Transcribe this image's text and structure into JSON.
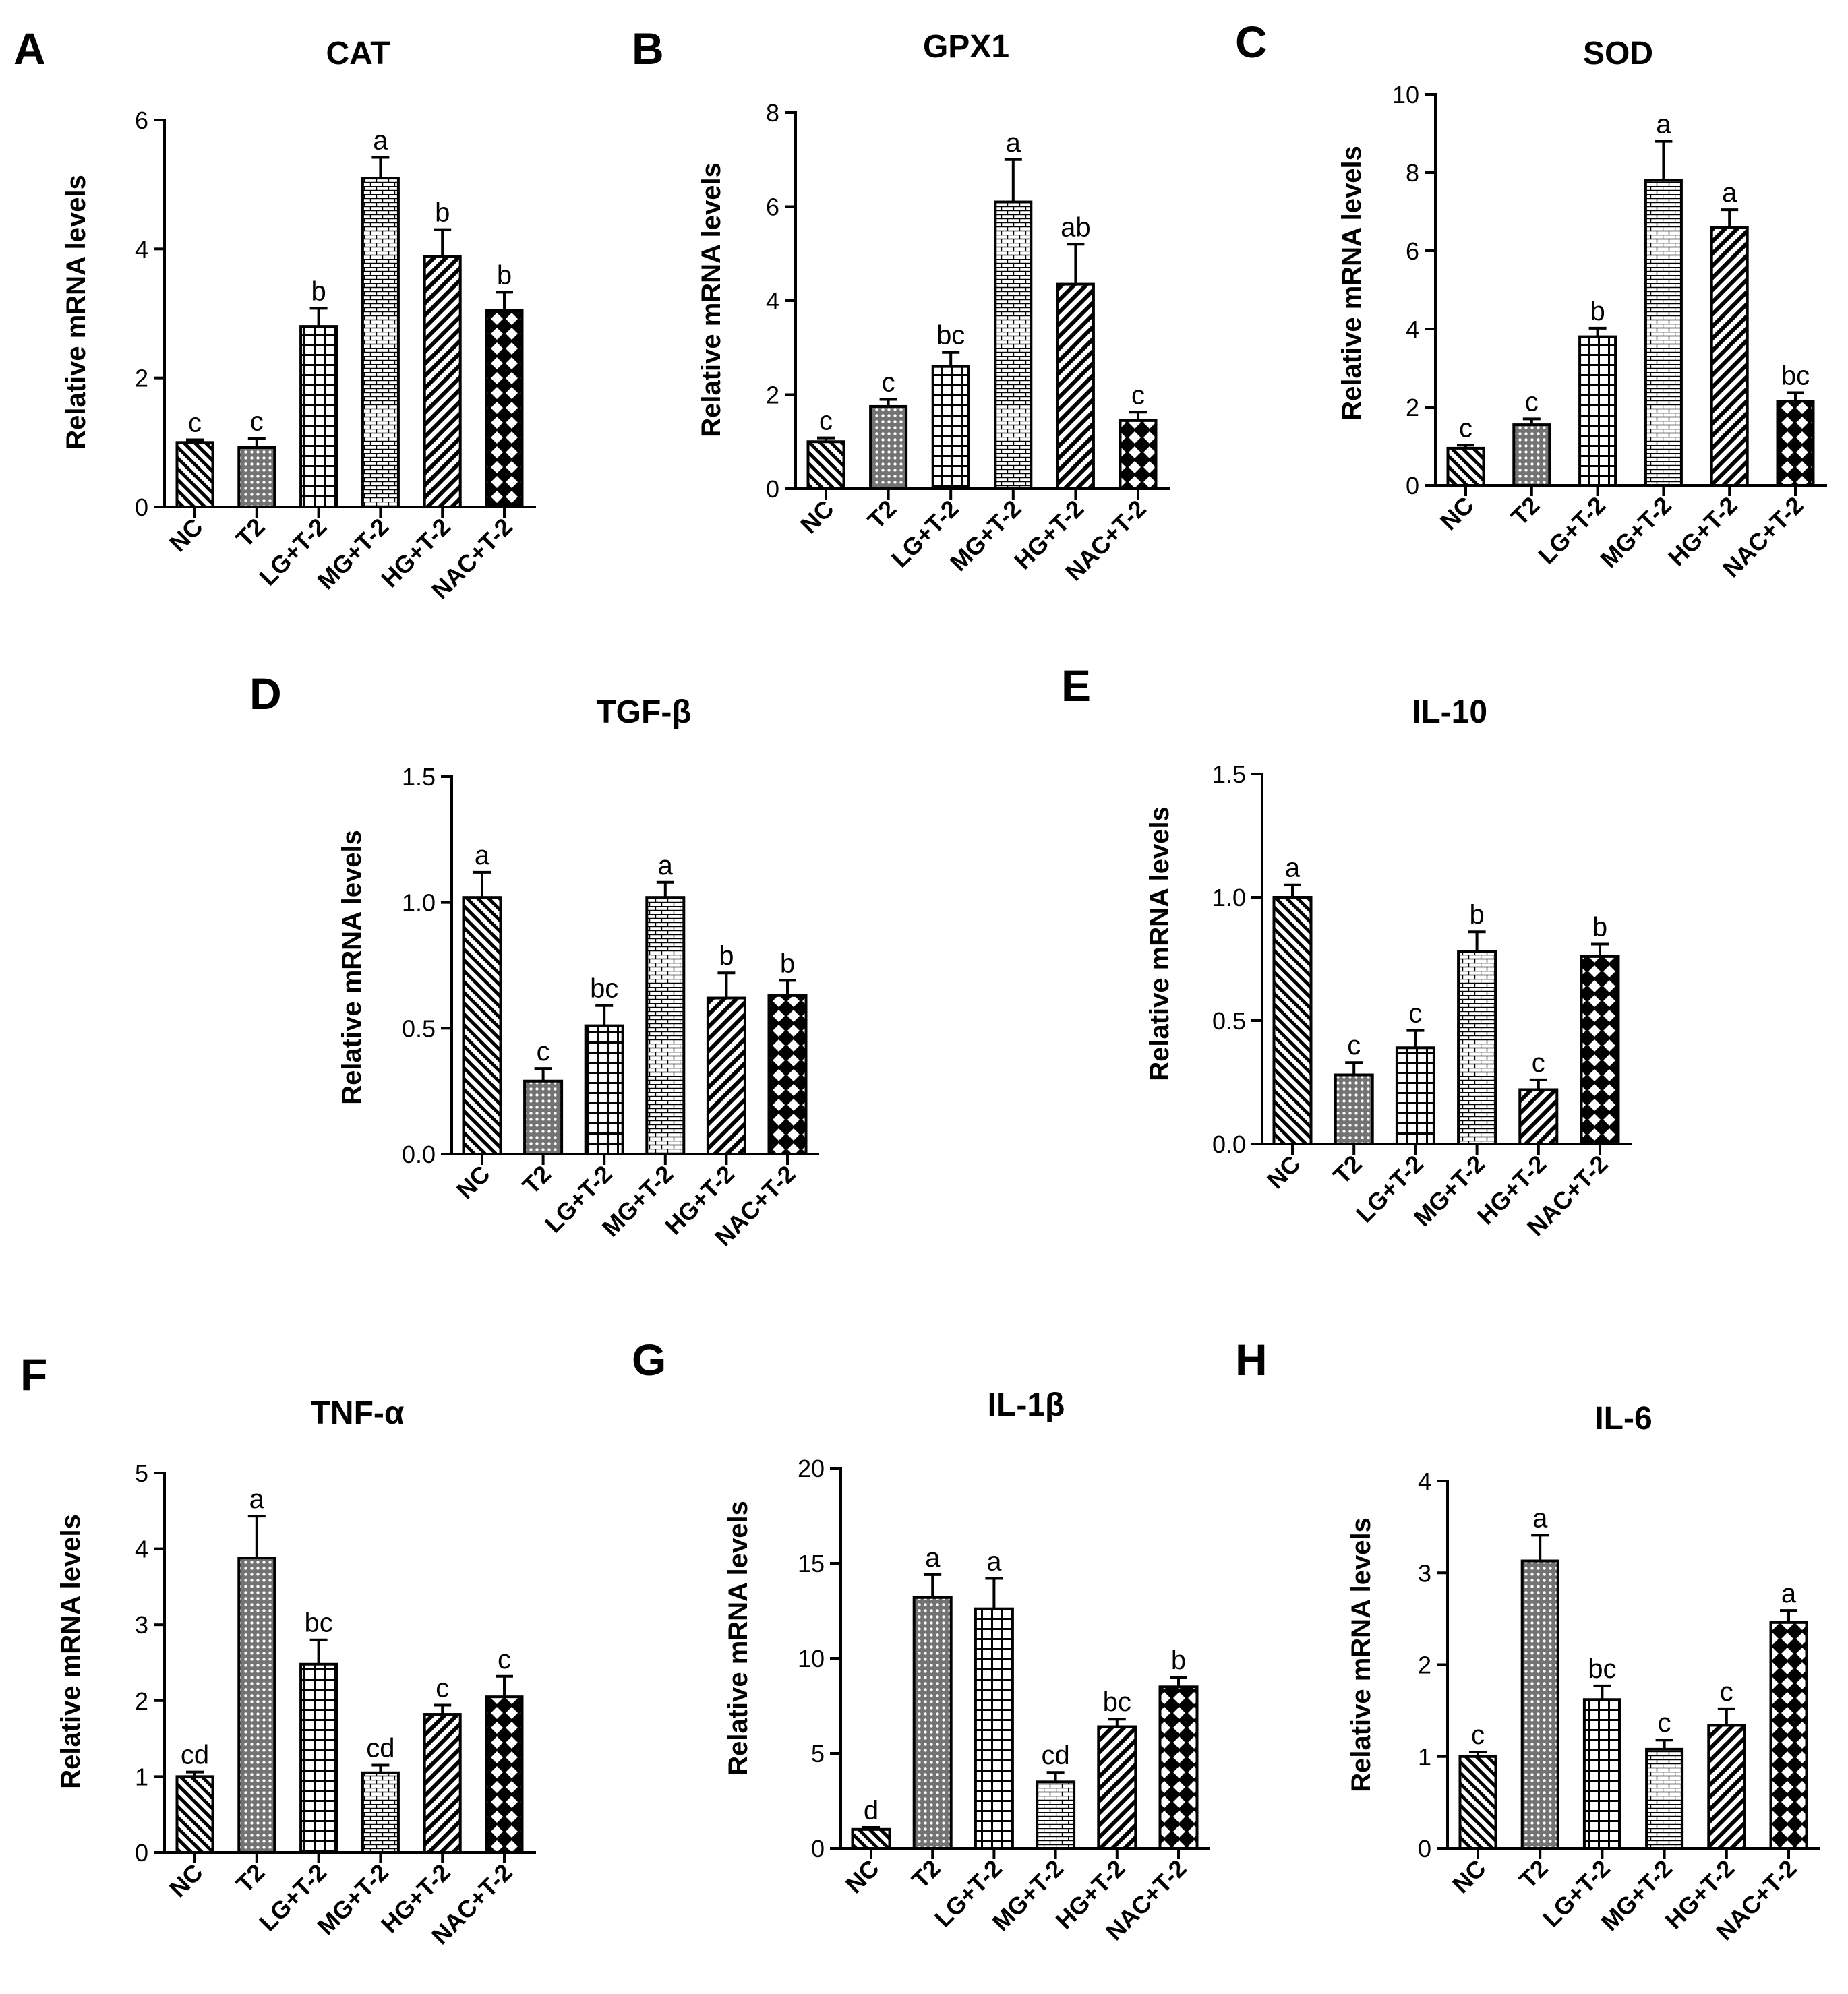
{
  "chart_data": [
    {
      "panel": "A",
      "type": "bar",
      "title": "CAT",
      "ylabel": "Relative mRNA levels",
      "categories": [
        "NC",
        "T2",
        "LG+T-2",
        "MG+T-2",
        "HG+T-2",
        "NAC+T-2"
      ],
      "values": [
        1.0,
        0.92,
        2.8,
        5.1,
        3.88,
        3.05
      ],
      "errors": [
        0.04,
        0.14,
        0.28,
        0.32,
        0.42,
        0.28
      ],
      "significance": [
        "c",
        "c",
        "b",
        "a",
        "b",
        "b"
      ],
      "ylim": [
        0,
        6
      ],
      "yticks": [
        0,
        2,
        4,
        6
      ],
      "ytick_labels": [
        "0",
        "2",
        "4",
        "6"
      ]
    },
    {
      "panel": "B",
      "type": "bar",
      "title": "GPX1",
      "ylabel": "Relative mRNA levels",
      "categories": [
        "NC",
        "T2",
        "LG+T-2",
        "MG+T-2",
        "HG+T-2",
        "NAC+T-2"
      ],
      "values": [
        1.0,
        1.75,
        2.6,
        6.1,
        4.35,
        1.45
      ],
      "errors": [
        0.08,
        0.15,
        0.3,
        0.9,
        0.85,
        0.18
      ],
      "significance": [
        "c",
        "c",
        "bc",
        "a",
        "ab",
        "c"
      ],
      "ylim": [
        0,
        8
      ],
      "yticks": [
        0,
        2,
        4,
        6,
        8
      ],
      "ytick_labels": [
        "0",
        "2",
        "4",
        "6",
        "8"
      ]
    },
    {
      "panel": "C",
      "type": "bar",
      "title": "SOD",
      "ylabel": "Relative mRNA levels",
      "categories": [
        "NC",
        "T2",
        "LG+T-2",
        "MG+T-2",
        "HG+T-2",
        "NAC+T-2"
      ],
      "values": [
        0.95,
        1.55,
        3.8,
        7.8,
        6.6,
        2.15
      ],
      "errors": [
        0.08,
        0.15,
        0.22,
        1.0,
        0.45,
        0.22
      ],
      "significance": [
        "c",
        "c",
        "b",
        "a",
        "a",
        "bc"
      ],
      "ylim": [
        0,
        10
      ],
      "yticks": [
        0,
        2,
        4,
        6,
        8,
        10
      ],
      "ytick_labels": [
        "0",
        "2",
        "4",
        "6",
        "8",
        "10"
      ]
    },
    {
      "panel": "D",
      "type": "bar",
      "title": "TGF-β",
      "ylabel": "Relative mRNA levels",
      "categories": [
        "NC",
        "T2",
        "LG+T-2",
        "MG+T-2",
        "HG+T-2",
        "NAC+T-2"
      ],
      "values": [
        1.02,
        0.29,
        0.51,
        1.02,
        0.62,
        0.63
      ],
      "errors": [
        0.1,
        0.05,
        0.08,
        0.06,
        0.1,
        0.06
      ],
      "significance": [
        "a",
        "c",
        "bc",
        "a",
        "b",
        "b"
      ],
      "ylim": [
        0,
        1.5
      ],
      "yticks": [
        0,
        0.5,
        1,
        1.5
      ],
      "ytick_labels": [
        "0.0",
        "0.5",
        "1.0",
        "1.5"
      ]
    },
    {
      "panel": "E",
      "type": "bar",
      "title": "IL-10",
      "ylabel": "Relative mRNA levels",
      "categories": [
        "NC",
        "T2",
        "LG+T-2",
        "MG+T-2",
        "HG+T-2",
        "NAC+T-2"
      ],
      "values": [
        1.0,
        0.28,
        0.39,
        0.78,
        0.22,
        0.76
      ],
      "errors": [
        0.05,
        0.05,
        0.07,
        0.08,
        0.04,
        0.05
      ],
      "significance": [
        "a",
        "c",
        "c",
        "b",
        "c",
        "b"
      ],
      "ylim": [
        0,
        1.5
      ],
      "yticks": [
        0,
        0.5,
        1,
        1.5
      ],
      "ytick_labels": [
        "0.0",
        "0.5",
        "1.0",
        "1.5"
      ]
    },
    {
      "panel": "F",
      "type": "bar",
      "title": "TNF-α",
      "ylabel": "Relative mRNA levels",
      "categories": [
        "NC",
        "T2",
        "LG+T-2",
        "MG+T-2",
        "HG+T-2",
        "NAC+T-2"
      ],
      "values": [
        1.0,
        3.88,
        2.48,
        1.05,
        1.82,
        2.05
      ],
      "errors": [
        0.06,
        0.55,
        0.32,
        0.1,
        0.12,
        0.27
      ],
      "significance": [
        "cd",
        "a",
        "bc",
        "cd",
        "c",
        "c"
      ],
      "ylim": [
        0,
        5
      ],
      "yticks": [
        0,
        1,
        2,
        3,
        4,
        5
      ],
      "ytick_labels": [
        "0",
        "1",
        "2",
        "3",
        "4",
        "5"
      ]
    },
    {
      "panel": "G",
      "type": "bar",
      "title": "IL-1β",
      "ylabel": "Relative mRNA levels",
      "categories": [
        "NC",
        "T2",
        "LG+T-2",
        "MG+T-2",
        "HG+T-2",
        "NAC+T-2"
      ],
      "values": [
        1.0,
        13.2,
        12.6,
        3.5,
        6.4,
        8.5
      ],
      "errors": [
        0.1,
        1.2,
        1.6,
        0.5,
        0.4,
        0.5
      ],
      "significance": [
        "d",
        "a",
        "a",
        "cd",
        "bc",
        "b"
      ],
      "ylim": [
        0,
        20
      ],
      "yticks": [
        0,
        5,
        10,
        15,
        20
      ],
      "ytick_labels": [
        "0",
        "5",
        "10",
        "15",
        "20"
      ]
    },
    {
      "panel": "H",
      "type": "bar",
      "title": "IL-6",
      "ylabel": "Relative mRNA levels",
      "categories": [
        "NC",
        "T2",
        "LG+T-2",
        "MG+T-2",
        "HG+T-2",
        "NAC+T-2"
      ],
      "values": [
        1.0,
        3.13,
        1.62,
        1.08,
        1.34,
        2.46
      ],
      "errors": [
        0.05,
        0.28,
        0.15,
        0.1,
        0.18,
        0.13
      ],
      "significance": [
        "c",
        "a",
        "bc",
        "c",
        "c",
        "a"
      ],
      "ylim": [
        0,
        4
      ],
      "yticks": [
        0,
        1,
        2,
        3,
        4
      ],
      "ytick_labels": [
        "0",
        "1",
        "2",
        "3",
        "4"
      ]
    }
  ]
}
